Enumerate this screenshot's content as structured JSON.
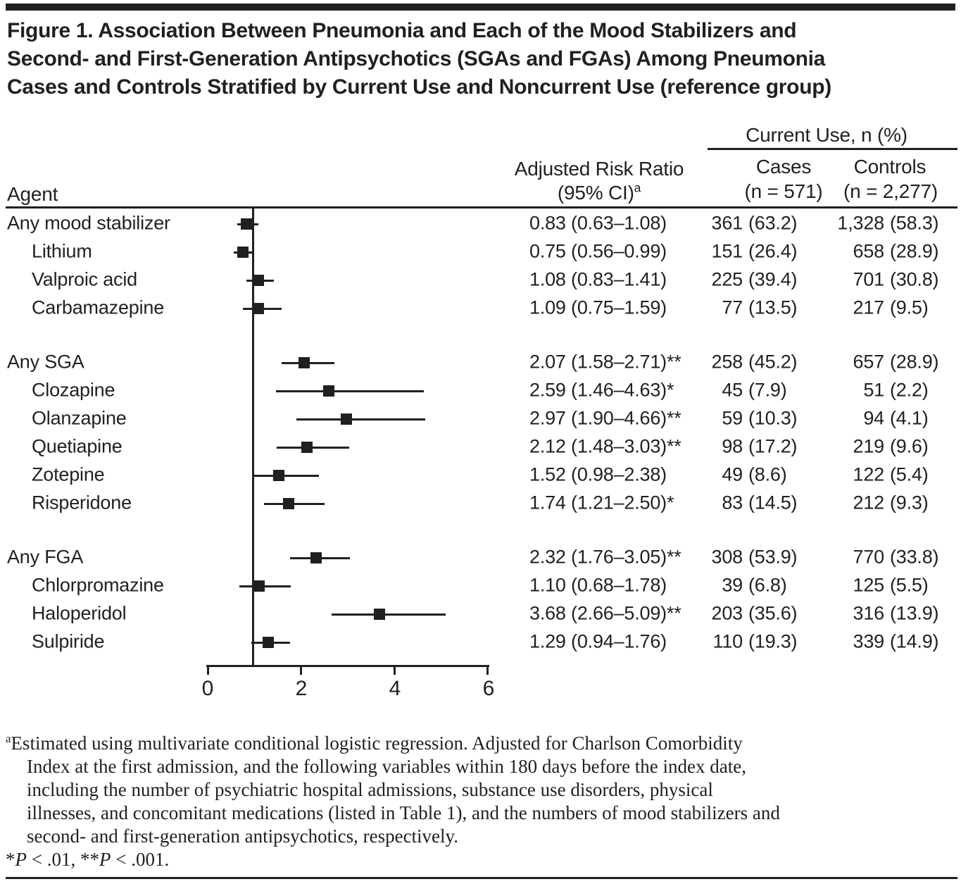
{
  "figure": {
    "title_lines": [
      "Figure 1. Association Between Pneumonia and Each of the Mood Stabilizers and",
      "Second- and First-Generation Antipsychotics (SGAs and FGAs) Among Pneumonia",
      "Cases and Controls Stratified by Current Use and Noncurrent Use (reference group)"
    ],
    "header": {
      "agent": "Agent",
      "rr_line1": "Adjusted Risk Ratio",
      "rr_line2": "(95% CI)",
      "rr_sup": "a",
      "current_use": "Current Use, n (%)",
      "cases_line1": "Cases",
      "cases_line2": "(n = 571)",
      "controls_line1": "Controls",
      "controls_line2": "(n = 2,277)"
    }
  },
  "chart_data": {
    "type": "forest",
    "x_axis": {
      "range": [
        0,
        6
      ],
      "ticks": [
        0,
        2,
        4,
        6
      ],
      "tick_labels": [
        "0",
        "2",
        "4",
        "6"
      ],
      "reference_line": 1
    },
    "groups": [
      {
        "rows": [
          {
            "label": "Any mood stabilizer",
            "indent": false,
            "rr": 0.83,
            "lo": 0.63,
            "hi": 1.08,
            "rr_text": "0.83 (0.63–1.08)",
            "cases_n": "361",
            "cases_pct": "(63.2)",
            "controls_n": "1,328",
            "controls_pct": "(58.3)"
          },
          {
            "label": "Lithium",
            "indent": true,
            "rr": 0.75,
            "lo": 0.56,
            "hi": 0.99,
            "rr_text": "0.75 (0.56–0.99)",
            "cases_n": "151",
            "cases_pct": "(26.4)",
            "controls_n": "658",
            "controls_pct": "(28.9)"
          },
          {
            "label": "Valproic acid",
            "indent": true,
            "rr": 1.08,
            "lo": 0.83,
            "hi": 1.41,
            "rr_text": "1.08 (0.83–1.41)",
            "cases_n": "225",
            "cases_pct": "(39.4)",
            "controls_n": "701",
            "controls_pct": "(30.8)"
          },
          {
            "label": "Carbamazepine",
            "indent": true,
            "rr": 1.09,
            "lo": 0.75,
            "hi": 1.59,
            "rr_text": "1.09 (0.75–1.59)",
            "cases_n": "77",
            "cases_pct": "(13.5)",
            "controls_n": "217",
            "controls_pct": "(9.5)"
          }
        ]
      },
      {
        "rows": [
          {
            "label": "Any SGA",
            "indent": false,
            "rr": 2.07,
            "lo": 1.58,
            "hi": 2.71,
            "rr_text": "2.07 (1.58–2.71)**",
            "cases_n": "258",
            "cases_pct": "(45.2)",
            "controls_n": "657",
            "controls_pct": "(28.9)"
          },
          {
            "label": "Clozapine",
            "indent": true,
            "rr": 2.59,
            "lo": 1.46,
            "hi": 4.63,
            "rr_text": "2.59 (1.46–4.63)*",
            "cases_n": "45",
            "cases_pct": "(7.9)",
            "controls_n": "51",
            "controls_pct": "(2.2)"
          },
          {
            "label": "Olanzapine",
            "indent": true,
            "rr": 2.97,
            "lo": 1.9,
            "hi": 4.66,
            "rr_text": "2.97 (1.90–4.66)**",
            "cases_n": "59",
            "cases_pct": "(10.3)",
            "controls_n": "94",
            "controls_pct": "(4.1)"
          },
          {
            "label": "Quetiapine",
            "indent": true,
            "rr": 2.12,
            "lo": 1.48,
            "hi": 3.03,
            "rr_text": "2.12 (1.48–3.03)**",
            "cases_n": "98",
            "cases_pct": "(17.2)",
            "controls_n": "219",
            "controls_pct": "(9.6)"
          },
          {
            "label": "Zotepine",
            "indent": true,
            "rr": 1.52,
            "lo": 0.98,
            "hi": 2.38,
            "rr_text": "1.52 (0.98–2.38)",
            "cases_n": "49",
            "cases_pct": "(8.6)",
            "controls_n": "122",
            "controls_pct": "(5.4)"
          },
          {
            "label": "Risperidone",
            "indent": true,
            "rr": 1.74,
            "lo": 1.21,
            "hi": 2.5,
            "rr_text": "1.74 (1.21–2.50)*",
            "cases_n": "83",
            "cases_pct": "(14.5)",
            "controls_n": "212",
            "controls_pct": "(9.3)"
          }
        ]
      },
      {
        "rows": [
          {
            "label": "Any FGA",
            "indent": false,
            "rr": 2.32,
            "lo": 1.76,
            "hi": 3.05,
            "rr_text": "2.32 (1.76–3.05)**",
            "cases_n": "308",
            "cases_pct": "(53.9)",
            "controls_n": "770",
            "controls_pct": "(33.8)"
          },
          {
            "label": "Chlorpromazine",
            "indent": true,
            "rr": 1.1,
            "lo": 0.68,
            "hi": 1.78,
            "rr_text": "1.10 (0.68–1.78)",
            "cases_n": "39",
            "cases_pct": "(6.8)",
            "controls_n": "125",
            "controls_pct": "(5.5)"
          },
          {
            "label": "Haloperidol",
            "indent": true,
            "rr": 3.68,
            "lo": 2.66,
            "hi": 5.09,
            "rr_text": "3.68 (2.66–5.09)**",
            "cases_n": "203",
            "cases_pct": "(35.6)",
            "controls_n": "316",
            "controls_pct": "(13.9)"
          },
          {
            "label": "Sulpiride",
            "indent": true,
            "rr": 1.29,
            "lo": 0.94,
            "hi": 1.76,
            "rr_text": "1.29 (0.94–1.76)",
            "cases_n": "110",
            "cases_pct": "(19.3)",
            "controls_n": "339",
            "controls_pct": "(14.9)"
          }
        ]
      }
    ]
  },
  "footnote": {
    "sup": "a",
    "lines": [
      "Estimated using multivariate conditional logistic regression. Adjusted for Charlson Comorbidity",
      "Index at the first admission, and the following variables within 180 days before the index date,",
      "including the number of psychiatric hospital admissions, substance use disorders, physical",
      "illnesses, and concomitant medications (listed in Table 1), and the numbers of mood stabilizers and",
      "second- and first-generation antipsychotics, respectively."
    ],
    "sig": {
      "s1": "*",
      "p1": "P",
      "mid": " < .01, **",
      "p2": "P",
      "end": " < .001."
    }
  }
}
